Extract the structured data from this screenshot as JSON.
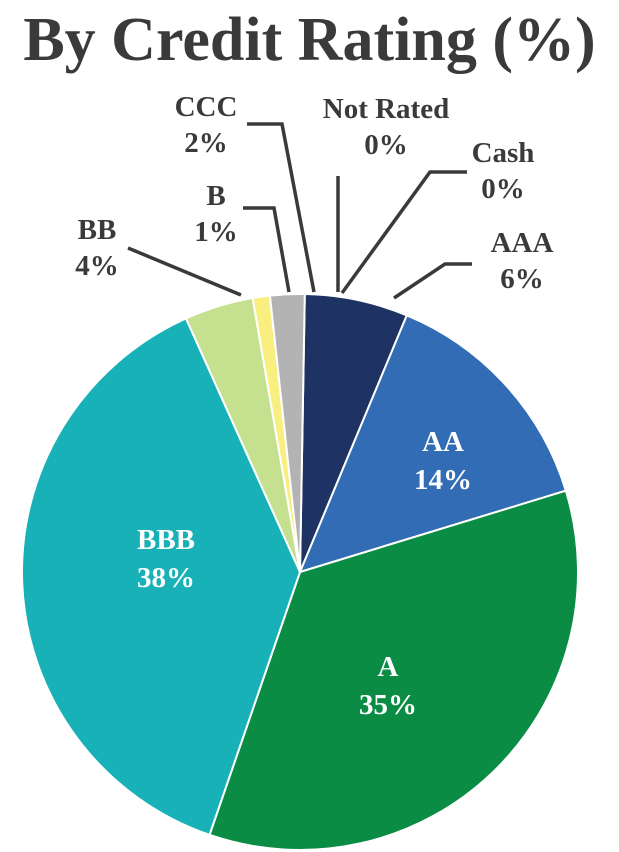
{
  "chart_data": {
    "type": "pie",
    "title": "By Credit Rating (%)",
    "slices": [
      {
        "label": "Cash",
        "value": 0,
        "display": "0%",
        "color": "#1f3264",
        "label_style": "outside",
        "label_color": "#3a3a3a"
      },
      {
        "label": "AAA",
        "value": 6,
        "display": "6%",
        "color": "#1f3264",
        "label_style": "outside",
        "label_color": "#3a3a3a"
      },
      {
        "label": "AA",
        "value": 14,
        "display": "14%",
        "color": "#316cb4",
        "label_style": "inside",
        "label_color": "#ffffff"
      },
      {
        "label": "A",
        "value": 35,
        "display": "35%",
        "color": "#0a8c44",
        "label_style": "inside",
        "label_color": "#ffffff"
      },
      {
        "label": "BBB",
        "value": 38,
        "display": "38%",
        "color": "#17b1b7",
        "label_style": "inside",
        "label_color": "#ffffff"
      },
      {
        "label": "BB",
        "value": 4,
        "display": "4%",
        "color": "#c5e08e",
        "label_style": "outside",
        "label_color": "#3a3a3a"
      },
      {
        "label": "B",
        "value": 1,
        "display": "1%",
        "color": "#f8ef80",
        "label_style": "outside",
        "label_color": "#3a3a3a"
      },
      {
        "label": "CCC",
        "value": 2,
        "display": "2%",
        "color": "#b3b3b3",
        "label_style": "outside",
        "label_color": "#3a3a3a"
      },
      {
        "label": "Not Rated",
        "value": 0,
        "display": "0%",
        "color": "#7f7f7f",
        "label_style": "outside",
        "label_color": "#3a3a3a"
      }
    ]
  }
}
